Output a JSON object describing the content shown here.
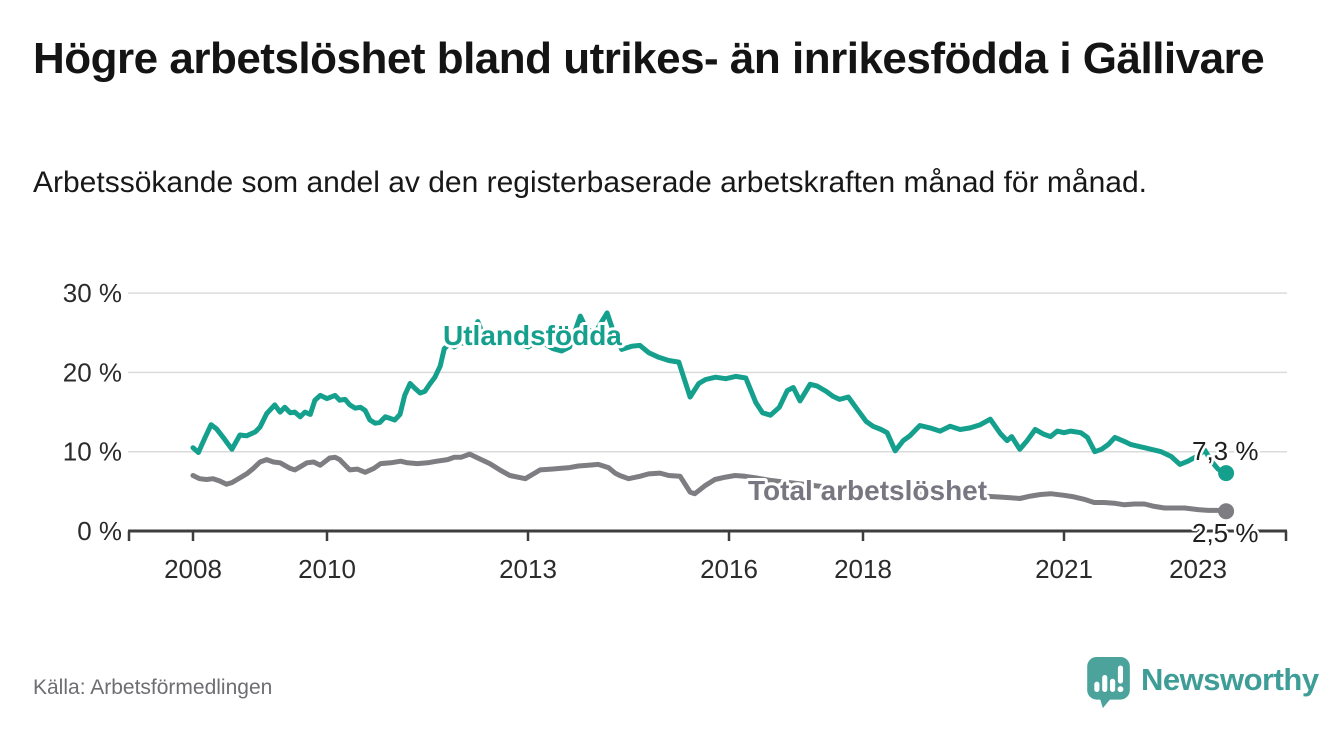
{
  "header": {
    "title": "Högre arbetslöshet bland utrikes- än inrikesfödda i Gällivare",
    "subtitle": "Arbetssökande som andel av den registerbaserade arbetskraften månad för månad."
  },
  "footer": {
    "source": "Källa: Arbetsförmedlingen",
    "logo_text": "Newsworthy"
  },
  "colors": {
    "accent_teal": "#15A08E",
    "line_gray": "#7E7D82",
    "grid": "#DBDBDB",
    "axis": "#3D3D3D",
    "tick_text": "#2B2B2B",
    "end_label_text": "#1F1F1F",
    "logo_teal": "#4BA39C",
    "logo_text_teal": "#3E9D97"
  },
  "chart_data": {
    "type": "line",
    "title": "Högre arbetslöshet bland utrikes- än inrikesfödda i Gällivare",
    "subtitle": "Arbetssökande som andel av den registerbaserade arbetskraften månad för månad.",
    "unit": "%",
    "grid": "horizontal",
    "legend_position": "inline-labels",
    "x_axis": {
      "range": [
        2007.9,
        2023.6
      ],
      "ticks": [
        {
          "value": 2008,
          "label": "2008"
        },
        {
          "value": 2010,
          "label": "2010"
        },
        {
          "value": 2013,
          "label": "2013"
        },
        {
          "value": 2016,
          "label": "2016"
        },
        {
          "value": 2018,
          "label": "2018"
        },
        {
          "value": 2021,
          "label": "2021"
        },
        {
          "value": 2023,
          "label": "2023"
        }
      ]
    },
    "y_axis": {
      "range": [
        0,
        31
      ],
      "ticks": [
        {
          "value": 0,
          "label": "0 %"
        },
        {
          "value": 10,
          "label": "10 %"
        },
        {
          "value": 20,
          "label": "20 %"
        },
        {
          "value": 30,
          "label": "30 %"
        }
      ]
    },
    "series": [
      {
        "id": "utlandsfodda",
        "name": "Utlandsfödda",
        "color": "#15A08E",
        "label_color": "#15A08E",
        "last_value": 7.3,
        "end_label": "7,3 %",
        "points": [
          [
            2008.0,
            10.5
          ],
          [
            2008.08,
            9.9
          ],
          [
            2008.17,
            11.6
          ],
          [
            2008.27,
            13.4
          ],
          [
            2008.35,
            12.9
          ],
          [
            2008.45,
            11.8
          ],
          [
            2008.58,
            10.3
          ],
          [
            2008.7,
            12.1
          ],
          [
            2008.8,
            12.0
          ],
          [
            2008.93,
            12.5
          ],
          [
            2009.0,
            13.1
          ],
          [
            2009.1,
            14.8
          ],
          [
            2009.22,
            15.9
          ],
          [
            2009.3,
            15.0
          ],
          [
            2009.37,
            15.6
          ],
          [
            2009.45,
            14.9
          ],
          [
            2009.52,
            15.0
          ],
          [
            2009.6,
            14.4
          ],
          [
            2009.67,
            15.0
          ],
          [
            2009.75,
            14.7
          ],
          [
            2009.82,
            16.5
          ],
          [
            2009.9,
            17.1
          ],
          [
            2010.0,
            16.7
          ],
          [
            2010.12,
            17.1
          ],
          [
            2010.19,
            16.5
          ],
          [
            2010.27,
            16.6
          ],
          [
            2010.34,
            15.9
          ],
          [
            2010.42,
            15.5
          ],
          [
            2010.5,
            15.6
          ],
          [
            2010.57,
            15.2
          ],
          [
            2010.64,
            14.0
          ],
          [
            2010.72,
            13.6
          ],
          [
            2010.79,
            13.7
          ],
          [
            2010.87,
            14.4
          ],
          [
            2010.94,
            14.2
          ],
          [
            2011.01,
            14.0
          ],
          [
            2011.09,
            14.7
          ],
          [
            2011.16,
            17.1
          ],
          [
            2011.24,
            18.6
          ],
          [
            2011.31,
            18.0
          ],
          [
            2011.39,
            17.4
          ],
          [
            2011.46,
            17.6
          ],
          [
            2011.54,
            18.6
          ],
          [
            2011.61,
            19.4
          ],
          [
            2011.69,
            20.8
          ],
          [
            2011.75,
            23.0
          ],
          [
            2011.83,
            23.6
          ],
          [
            2011.9,
            23.2
          ],
          [
            2012.0,
            23.8
          ],
          [
            2012.1,
            23.5
          ],
          [
            2012.25,
            26.4
          ],
          [
            2012.33,
            24.7
          ],
          [
            2012.42,
            24.1
          ],
          [
            2012.5,
            24.6
          ],
          [
            2012.58,
            24.9
          ],
          [
            2012.67,
            24.3
          ],
          [
            2012.75,
            24.0
          ],
          [
            2012.87,
            23.6
          ],
          [
            2013.0,
            23.2
          ],
          [
            2013.12,
            23.8
          ],
          [
            2013.25,
            23.6
          ],
          [
            2013.37,
            23.0
          ],
          [
            2013.5,
            22.7
          ],
          [
            2013.62,
            23.2
          ],
          [
            2013.78,
            27.1
          ],
          [
            2013.87,
            25.5
          ],
          [
            2014.0,
            25.0
          ],
          [
            2014.18,
            27.5
          ],
          [
            2014.3,
            24.5
          ],
          [
            2014.4,
            22.9
          ],
          [
            2014.55,
            23.3
          ],
          [
            2014.67,
            23.4
          ],
          [
            2014.8,
            22.5
          ],
          [
            2014.95,
            21.9
          ],
          [
            2015.1,
            21.5
          ],
          [
            2015.25,
            21.3
          ],
          [
            2015.42,
            16.9
          ],
          [
            2015.55,
            18.6
          ],
          [
            2015.65,
            19.1
          ],
          [
            2015.8,
            19.4
          ],
          [
            2015.95,
            19.2
          ],
          [
            2016.1,
            19.5
          ],
          [
            2016.25,
            19.3
          ],
          [
            2016.4,
            16.2
          ],
          [
            2016.5,
            14.9
          ],
          [
            2016.62,
            14.6
          ],
          [
            2016.75,
            15.6
          ],
          [
            2016.87,
            17.7
          ],
          [
            2016.96,
            18.1
          ],
          [
            2017.06,
            16.4
          ],
          [
            2017.21,
            18.5
          ],
          [
            2017.31,
            18.3
          ],
          [
            2017.45,
            17.6
          ],
          [
            2017.55,
            17.0
          ],
          [
            2017.65,
            16.6
          ],
          [
            2017.78,
            16.9
          ],
          [
            2017.9,
            15.5
          ],
          [
            2018.05,
            13.8
          ],
          [
            2018.15,
            13.2
          ],
          [
            2018.27,
            12.8
          ],
          [
            2018.36,
            12.4
          ],
          [
            2018.48,
            10.1
          ],
          [
            2018.6,
            11.4
          ],
          [
            2018.7,
            12.0
          ],
          [
            2018.85,
            13.3
          ],
          [
            2019.0,
            13.0
          ],
          [
            2019.15,
            12.6
          ],
          [
            2019.3,
            13.2
          ],
          [
            2019.45,
            12.8
          ],
          [
            2019.6,
            13.0
          ],
          [
            2019.75,
            13.4
          ],
          [
            2019.9,
            14.1
          ],
          [
            2020.05,
            12.3
          ],
          [
            2020.15,
            11.4
          ],
          [
            2020.22,
            11.9
          ],
          [
            2020.34,
            10.3
          ],
          [
            2020.45,
            11.4
          ],
          [
            2020.57,
            12.8
          ],
          [
            2020.7,
            12.2
          ],
          [
            2020.8,
            11.9
          ],
          [
            2020.9,
            12.6
          ],
          [
            2021.0,
            12.4
          ],
          [
            2021.1,
            12.6
          ],
          [
            2021.25,
            12.4
          ],
          [
            2021.35,
            11.8
          ],
          [
            2021.46,
            10.0
          ],
          [
            2021.56,
            10.3
          ],
          [
            2021.66,
            10.9
          ],
          [
            2021.76,
            11.8
          ],
          [
            2021.9,
            11.3
          ],
          [
            2022.0,
            10.9
          ],
          [
            2022.15,
            10.6
          ],
          [
            2022.3,
            10.3
          ],
          [
            2022.45,
            10.0
          ],
          [
            2022.6,
            9.4
          ],
          [
            2022.73,
            8.4
          ],
          [
            2022.85,
            8.8
          ],
          [
            2023.0,
            9.5
          ],
          [
            2023.1,
            10.2
          ],
          [
            2023.2,
            8.8
          ],
          [
            2023.3,
            7.8
          ],
          [
            2023.42,
            7.3
          ]
        ]
      },
      {
        "id": "total-arbetsloshet",
        "name": "Total arbetslöshet",
        "color": "#7E7D82",
        "label_color": "#787781",
        "last_value": 2.5,
        "end_label": "2,5 %",
        "points": [
          [
            2008.0,
            7.0
          ],
          [
            2008.1,
            6.6
          ],
          [
            2008.2,
            6.5
          ],
          [
            2008.3,
            6.6
          ],
          [
            2008.4,
            6.3
          ],
          [
            2008.5,
            5.9
          ],
          [
            2008.58,
            6.1
          ],
          [
            2008.7,
            6.7
          ],
          [
            2008.8,
            7.2
          ],
          [
            2008.9,
            7.9
          ],
          [
            2009.0,
            8.7
          ],
          [
            2009.1,
            9.0
          ],
          [
            2009.2,
            8.7
          ],
          [
            2009.3,
            8.6
          ],
          [
            2009.45,
            7.9
          ],
          [
            2009.52,
            7.7
          ],
          [
            2009.6,
            8.1
          ],
          [
            2009.7,
            8.6
          ],
          [
            2009.8,
            8.7
          ],
          [
            2009.9,
            8.3
          ],
          [
            2010.04,
            9.2
          ],
          [
            2010.12,
            9.3
          ],
          [
            2010.19,
            9.0
          ],
          [
            2010.27,
            8.3
          ],
          [
            2010.34,
            7.7
          ],
          [
            2010.45,
            7.8
          ],
          [
            2010.57,
            7.4
          ],
          [
            2010.7,
            7.9
          ],
          [
            2010.8,
            8.5
          ],
          [
            2010.95,
            8.6
          ],
          [
            2011.1,
            8.8
          ],
          [
            2011.2,
            8.6
          ],
          [
            2011.35,
            8.5
          ],
          [
            2011.5,
            8.6
          ],
          [
            2011.64,
            8.8
          ],
          [
            2011.8,
            9.0
          ],
          [
            2011.9,
            9.3
          ],
          [
            2012.0,
            9.3
          ],
          [
            2012.13,
            9.7
          ],
          [
            2012.25,
            9.2
          ],
          [
            2012.43,
            8.5
          ],
          [
            2012.6,
            7.6
          ],
          [
            2012.73,
            7.0
          ],
          [
            2012.96,
            6.6
          ],
          [
            2013.1,
            7.3
          ],
          [
            2013.18,
            7.7
          ],
          [
            2013.35,
            7.8
          ],
          [
            2013.48,
            7.9
          ],
          [
            2013.62,
            8.0
          ],
          [
            2013.75,
            8.2
          ],
          [
            2013.9,
            8.3
          ],
          [
            2014.05,
            8.4
          ],
          [
            2014.2,
            8.0
          ],
          [
            2014.3,
            7.3
          ],
          [
            2014.37,
            7.0
          ],
          [
            2014.5,
            6.6
          ],
          [
            2014.67,
            6.9
          ],
          [
            2014.8,
            7.2
          ],
          [
            2014.97,
            7.3
          ],
          [
            2015.1,
            7.0
          ],
          [
            2015.27,
            6.9
          ],
          [
            2015.42,
            4.9
          ],
          [
            2015.49,
            4.7
          ],
          [
            2015.64,
            5.7
          ],
          [
            2015.79,
            6.5
          ],
          [
            2015.95,
            6.8
          ],
          [
            2016.09,
            7.0
          ],
          [
            2016.24,
            6.9
          ],
          [
            2016.4,
            6.7
          ],
          [
            2016.6,
            6.4
          ],
          [
            2016.8,
            6.2
          ],
          [
            2017.0,
            6.0
          ],
          [
            2017.2,
            5.8
          ],
          [
            2017.4,
            5.6
          ],
          [
            2017.6,
            5.4
          ],
          [
            2017.8,
            5.2
          ],
          [
            2018.0,
            5.1
          ],
          [
            2018.2,
            4.9
          ],
          [
            2018.4,
            4.7
          ],
          [
            2018.6,
            4.6
          ],
          [
            2018.8,
            4.6
          ],
          [
            2019.0,
            4.7
          ],
          [
            2019.2,
            4.6
          ],
          [
            2019.4,
            4.5
          ],
          [
            2019.6,
            4.4
          ],
          [
            2019.8,
            4.4
          ],
          [
            2020.0,
            4.3
          ],
          [
            2020.2,
            4.2
          ],
          [
            2020.34,
            4.1
          ],
          [
            2020.5,
            4.4
          ],
          [
            2020.65,
            4.6
          ],
          [
            2020.8,
            4.7
          ],
          [
            2021.0,
            4.5
          ],
          [
            2021.15,
            4.3
          ],
          [
            2021.3,
            4.0
          ],
          [
            2021.45,
            3.6
          ],
          [
            2021.6,
            3.6
          ],
          [
            2021.75,
            3.5
          ],
          [
            2021.9,
            3.3
          ],
          [
            2022.05,
            3.4
          ],
          [
            2022.2,
            3.4
          ],
          [
            2022.35,
            3.1
          ],
          [
            2022.5,
            2.9
          ],
          [
            2022.65,
            2.9
          ],
          [
            2022.8,
            2.9
          ],
          [
            2023.0,
            2.7
          ],
          [
            2023.15,
            2.6
          ],
          [
            2023.3,
            2.6
          ],
          [
            2023.42,
            2.5
          ]
        ]
      }
    ]
  }
}
